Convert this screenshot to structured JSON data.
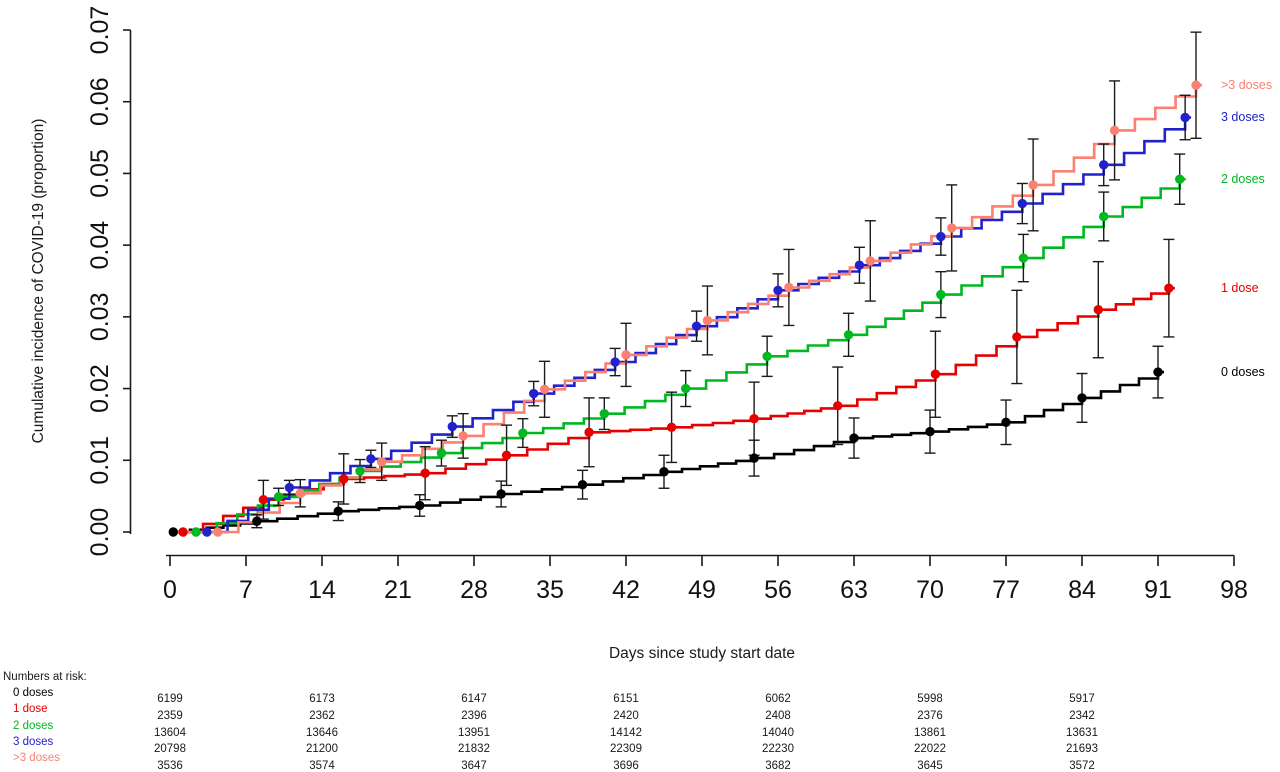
{
  "figure_colors": {
    "dose0": "#000000",
    "dose1": "#e60000",
    "dose2": "#00b820",
    "dose3": "#2222cc",
    "dose3plus": "#fa8072",
    "axis": "#1a1a1a",
    "error_bar": "#1a1a1a"
  },
  "legend": [
    {
      "label": ">3 doses",
      "color": "#fa8072",
      "series": ">3 doses"
    },
    {
      "label": "3 doses",
      "color": "#2222cc",
      "series": "3 doses"
    },
    {
      "label": "2 doses",
      "color": "#00b820",
      "series": "2 doses"
    },
    {
      "label": "1 dose",
      "color": "#e60000",
      "series": "1 dose"
    },
    {
      "label": "0 doses",
      "color": "#000000",
      "series": "0 doses"
    }
  ],
  "chart_data": {
    "type": "line",
    "style": "step-cumulative-incidence",
    "title": "",
    "xlabel": "Days since study start date",
    "ylabel": "Cumulative incidence of COVID-19 (proportion)",
    "xlim": [
      0,
      98
    ],
    "ylim": [
      0,
      0.07
    ],
    "x_ticks": [
      0,
      7,
      14,
      21,
      28,
      35,
      42,
      49,
      56,
      63,
      70,
      77,
      84,
      91,
      98
    ],
    "y_ticks": [
      0.0,
      0.01,
      0.02,
      0.03,
      0.04,
      0.05,
      0.06,
      0.07
    ],
    "grid": false,
    "legend_position": "right-of-plot",
    "point_format": [
      "day",
      "estimate",
      "ci_low",
      "ci_high"
    ],
    "series": [
      {
        "name": "0 doses",
        "color": "#000000",
        "points": [
          [
            0.3,
            0.0,
            0.0,
            0.0
          ],
          [
            8,
            0.0015,
            0.0006,
            0.0024
          ],
          [
            15.5,
            0.0029,
            0.0016,
            0.0042
          ],
          [
            23,
            0.0037,
            0.0022,
            0.0052
          ],
          [
            30.5,
            0.0053,
            0.0035,
            0.0071
          ],
          [
            38,
            0.0066,
            0.0046,
            0.0086
          ],
          [
            45.5,
            0.0084,
            0.0061,
            0.0107
          ],
          [
            53.8,
            0.0103,
            0.0078,
            0.0128
          ],
          [
            63,
            0.0131,
            0.0103,
            0.0159
          ],
          [
            70,
            0.014,
            0.011,
            0.017
          ],
          [
            77,
            0.0153,
            0.0122,
            0.0184
          ],
          [
            84,
            0.0187,
            0.0153,
            0.0221
          ],
          [
            91,
            0.0223,
            0.0187,
            0.0259
          ]
        ]
      },
      {
        "name": "1 dose",
        "color": "#e60000",
        "points": [
          [
            1.2,
            0.0,
            0.0,
            0.0
          ],
          [
            8.6,
            0.0045,
            0.0018,
            0.0072
          ],
          [
            16,
            0.0074,
            0.0039,
            0.0109
          ],
          [
            23.5,
            0.0082,
            0.0045,
            0.0119
          ],
          [
            31,
            0.0107,
            0.0065,
            0.0149
          ],
          [
            38.6,
            0.0139,
            0.0091,
            0.0187
          ],
          [
            46.2,
            0.0146,
            0.0097,
            0.0195
          ],
          [
            53.8,
            0.0158,
            0.0107,
            0.0209
          ],
          [
            61.5,
            0.0176,
            0.0122,
            0.023
          ],
          [
            70.5,
            0.022,
            0.016,
            0.028
          ],
          [
            78,
            0.0272,
            0.0207,
            0.0337
          ],
          [
            85.5,
            0.031,
            0.0243,
            0.0377
          ],
          [
            92,
            0.034,
            0.0272,
            0.0408
          ]
        ]
      },
      {
        "name": "2 doses",
        "color": "#00b820",
        "points": [
          [
            2.4,
            0.0,
            0.0,
            0.0
          ],
          [
            10,
            0.0049,
            0.0037,
            0.0061
          ],
          [
            17.5,
            0.0085,
            0.0069,
            0.0101
          ],
          [
            25,
            0.011,
            0.0092,
            0.0128
          ],
          [
            32.5,
            0.0138,
            0.0118,
            0.0158
          ],
          [
            40,
            0.0165,
            0.0143,
            0.0187
          ],
          [
            47.5,
            0.02,
            0.0175,
            0.0225
          ],
          [
            55,
            0.0245,
            0.0217,
            0.0273
          ],
          [
            62.5,
            0.0275,
            0.0245,
            0.0305
          ],
          [
            71,
            0.0331,
            0.0299,
            0.0363
          ],
          [
            78.6,
            0.0382,
            0.0349,
            0.0415
          ],
          [
            86,
            0.044,
            0.0406,
            0.0474
          ],
          [
            93,
            0.0492,
            0.0457,
            0.0527
          ]
        ]
      },
      {
        "name": "3 doses",
        "color": "#2222cc",
        "points": [
          [
            3.4,
            0.0,
            0.0,
            0.0
          ],
          [
            11,
            0.0062,
            0.0052,
            0.0072
          ],
          [
            18.5,
            0.0102,
            0.009,
            0.0114
          ],
          [
            26,
            0.0147,
            0.0132,
            0.0162
          ],
          [
            33.5,
            0.0193,
            0.0176,
            0.021
          ],
          [
            41,
            0.0237,
            0.0218,
            0.0256
          ],
          [
            48.5,
            0.0287,
            0.0266,
            0.0308
          ],
          [
            56,
            0.0337,
            0.0314,
            0.036
          ],
          [
            63.5,
            0.0372,
            0.0347,
            0.0397
          ],
          [
            71,
            0.0412,
            0.0386,
            0.0438
          ],
          [
            78.5,
            0.0458,
            0.043,
            0.0486
          ],
          [
            86,
            0.0512,
            0.0483,
            0.0541
          ],
          [
            93.5,
            0.0578,
            0.0547,
            0.0609
          ]
        ]
      },
      {
        "name": ">3 doses",
        "color": "#fa8072",
        "points": [
          [
            4.4,
            0.0,
            0.0,
            0.0
          ],
          [
            12,
            0.0054,
            0.0035,
            0.0073
          ],
          [
            19.5,
            0.0098,
            0.0072,
            0.0124
          ],
          [
            27,
            0.0134,
            0.0103,
            0.0165
          ],
          [
            34.5,
            0.0199,
            0.016,
            0.0238
          ],
          [
            42,
            0.0247,
            0.0203,
            0.0291
          ],
          [
            49.5,
            0.0295,
            0.0247,
            0.0343
          ],
          [
            57,
            0.0341,
            0.0288,
            0.0394
          ],
          [
            64.5,
            0.0378,
            0.0322,
            0.0434
          ],
          [
            72,
            0.0424,
            0.0364,
            0.0484
          ],
          [
            79.5,
            0.0484,
            0.042,
            0.0548
          ],
          [
            87,
            0.056,
            0.0491,
            0.0629
          ],
          [
            94.5,
            0.0623,
            0.0549,
            0.0697
          ]
        ]
      }
    ],
    "numbers_at_risk": {
      "label": "Numbers at risk:",
      "columns_days": [
        0,
        14,
        28,
        42,
        56,
        70,
        84
      ],
      "rows": [
        {
          "label": "0 doses",
          "color": "#000000",
          "values": [
            6199,
            6173,
            6147,
            6151,
            6062,
            5998,
            5917
          ]
        },
        {
          "label": "1 dose",
          "color": "#e60000",
          "values": [
            2359,
            2362,
            2396,
            2420,
            2408,
            2376,
            2342
          ]
        },
        {
          "label": "2 doses",
          "color": "#00b820",
          "values": [
            13604,
            13646,
            13951,
            14142,
            14040,
            13861,
            13631
          ]
        },
        {
          "label": "3 doses",
          "color": "#2222cc",
          "values": [
            20798,
            21200,
            21832,
            22309,
            22230,
            22022,
            21693
          ]
        },
        {
          "label": ">3 doses",
          "color": "#fa8072",
          "values": [
            3536,
            3574,
            3647,
            3696,
            3682,
            3645,
            3572
          ]
        }
      ]
    }
  }
}
